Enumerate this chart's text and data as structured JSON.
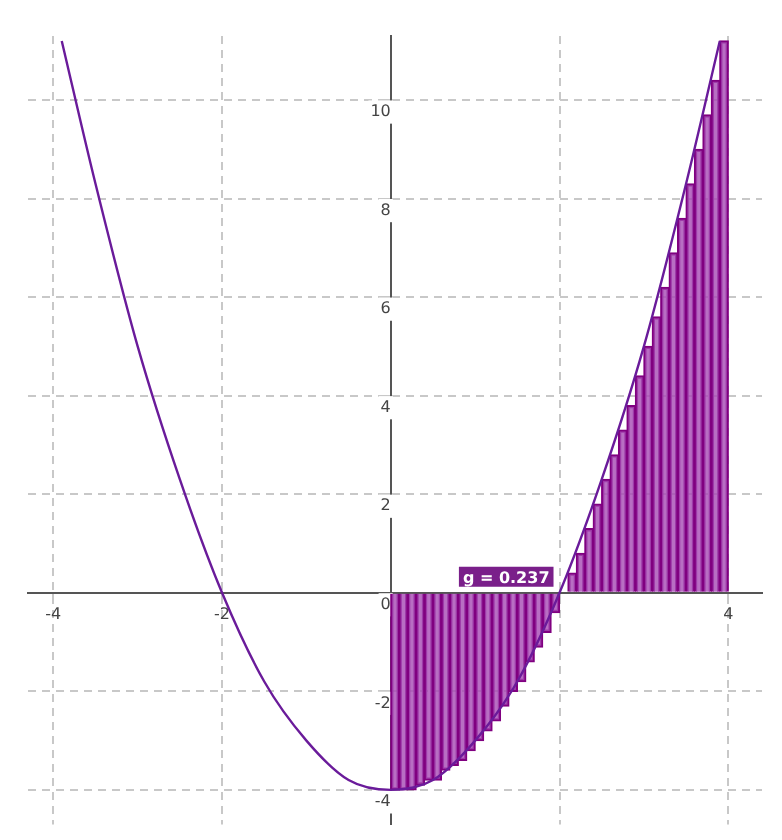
{
  "chart_data": {
    "type": "line",
    "xlim": [
      -4.3,
      4.4
    ],
    "ylim": [
      -4.7,
      11.3
    ],
    "xticks": [
      -4,
      -2,
      {
        "value": 0,
        "label": null
      },
      {
        "value": 2,
        "label": null
      },
      4
    ],
    "yticks": [
      -4,
      -2,
      0,
      2,
      4,
      6,
      8,
      10
    ],
    "grid": true,
    "legend": false,
    "series": [
      {
        "color": "#6a1b9a",
        "x": [
          -3.9,
          -3.5,
          -3,
          -2.5,
          -2,
          -1.5,
          -1,
          -0.5,
          0,
          0.5,
          1,
          1.5,
          2,
          2.5,
          3,
          3.5,
          3.9
        ],
        "values": [
          11.2,
          8.3,
          5,
          2.3,
          0,
          -1.8,
          -3,
          -3.8,
          -4,
          -3.8,
          -3,
          -1.8,
          0,
          2.3,
          5,
          8.3,
          11.2
        ]
      },
      {
        "type": "histogram",
        "color": "#a64ab4",
        "bins": [
          0,
          0.1,
          0.2,
          0.3,
          0.4,
          0.5,
          0.6,
          0.7,
          0.8,
          0.9,
          1,
          1.1,
          1.2,
          1.3,
          1.4,
          1.5,
          1.6,
          1.7,
          1.8,
          1.9,
          2,
          2.1,
          2.2,
          2.3,
          2.4,
          2.5,
          2.6,
          2.7,
          2.8,
          2.9,
          3,
          3.1,
          3.2,
          3.3,
          3.4,
          3.5,
          3.6,
          3.7,
          3.8,
          3.9,
          4
        ],
        "values": [
          -4,
          -4,
          -4,
          -3.9,
          -3.8,
          -3.8,
          -3.6,
          -3.5,
          -3.4,
          -3.2,
          -3,
          -2.8,
          -2.6,
          -2.3,
          -2,
          -1.8,
          -1.4,
          -1.1,
          -0.8,
          -0.4,
          0,
          0.4,
          0.8,
          1.3,
          1.8,
          2.3,
          2.8,
          3.3,
          3.8,
          4.4,
          5,
          5.6,
          6.2,
          6.9,
          7.6,
          8.3,
          9,
          9.7,
          10.4,
          11.2
        ]
      }
    ],
    "annotations": [
      {
        "text": "g = 0.237",
        "x": 2,
        "y": 0
      }
    ]
  }
}
